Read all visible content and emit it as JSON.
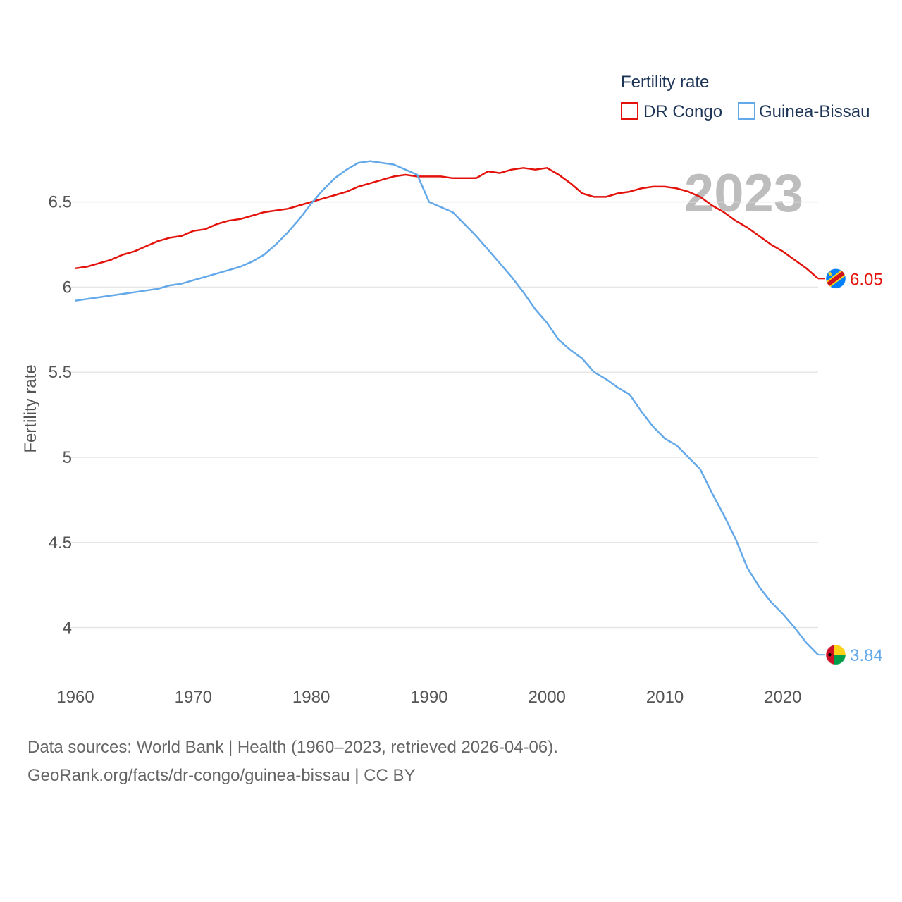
{
  "chart_data": {
    "type": "line",
    "legend_title": "Fertility rate",
    "ylabel": "Fertility rate",
    "xlabel": "",
    "year_display": "2023",
    "xlim": [
      1960,
      2023
    ],
    "ylim": [
      3.7,
      6.9
    ],
    "x_ticks": [
      1960,
      1970,
      1980,
      1990,
      2000,
      2010,
      2020
    ],
    "y_ticks": [
      4,
      4.5,
      5,
      5.5,
      6,
      6.5
    ],
    "x_tick_labels": [
      "1960",
      "1970",
      "1980",
      "1990",
      "2000",
      "2010",
      "2020"
    ],
    "y_tick_labels": [
      "4",
      "4.5",
      "5",
      "5.5",
      "6",
      "6.5"
    ],
    "x": [
      1960,
      1961,
      1962,
      1963,
      1964,
      1965,
      1966,
      1967,
      1968,
      1969,
      1970,
      1971,
      1972,
      1973,
      1974,
      1975,
      1976,
      1977,
      1978,
      1979,
      1980,
      1981,
      1982,
      1983,
      1984,
      1985,
      1986,
      1987,
      1988,
      1989,
      1990,
      1991,
      1992,
      1993,
      1994,
      1995,
      1996,
      1997,
      1998,
      1999,
      2000,
      2001,
      2002,
      2003,
      2004,
      2005,
      2006,
      2007,
      2008,
      2009,
      2010,
      2011,
      2012,
      2013,
      2014,
      2015,
      2016,
      2017,
      2018,
      2019,
      2020,
      2021,
      2022,
      2023
    ],
    "series": [
      {
        "name": "DR Congo",
        "color": "#e3120b",
        "end_label": "6.05",
        "flag": "dr-congo-flag-icon",
        "values": [
          6.11,
          6.12,
          6.14,
          6.16,
          6.19,
          6.21,
          6.24,
          6.27,
          6.29,
          6.3,
          6.33,
          6.34,
          6.37,
          6.39,
          6.4,
          6.42,
          6.44,
          6.45,
          6.46,
          6.48,
          6.5,
          6.52,
          6.54,
          6.56,
          6.59,
          6.61,
          6.63,
          6.65,
          6.66,
          6.65,
          6.65,
          6.65,
          6.64,
          6.64,
          6.64,
          6.68,
          6.67,
          6.69,
          6.7,
          6.69,
          6.7,
          6.66,
          6.61,
          6.55,
          6.53,
          6.53,
          6.55,
          6.56,
          6.58,
          6.59,
          6.59,
          6.58,
          6.56,
          6.53,
          6.48,
          6.44,
          6.39,
          6.35,
          6.3,
          6.25,
          6.21,
          6.16,
          6.11,
          6.05
        ]
      },
      {
        "name": "Guinea-Bissau",
        "color": "#63a8e9",
        "end_label": "3.84",
        "flag": "guinea-bissau-flag-icon",
        "values": [
          5.92,
          5.93,
          5.94,
          5.95,
          5.96,
          5.97,
          5.98,
          5.99,
          6.01,
          6.02,
          6.04,
          6.06,
          6.08,
          6.1,
          6.12,
          6.15,
          6.19,
          6.25,
          6.32,
          6.4,
          6.49,
          6.57,
          6.64,
          6.69,
          6.73,
          6.74,
          6.73,
          6.72,
          6.69,
          6.66,
          6.5,
          6.47,
          6.44,
          6.37,
          6.3,
          6.22,
          6.14,
          6.06,
          5.97,
          5.87,
          5.79,
          5.69,
          5.63,
          5.58,
          5.5,
          5.46,
          5.41,
          5.37,
          5.27,
          5.18,
          5.11,
          5.07,
          5.0,
          4.93,
          4.79,
          4.66,
          4.52,
          4.35,
          4.24,
          4.15,
          4.08,
          4.0,
          3.91,
          3.84
        ]
      }
    ]
  },
  "footer": {
    "line1": "Data sources: World Bank | Health (1960–2023, retrieved 2026-04-06).",
    "line2": "GeoRank.org/facts/dr-congo/guinea-bissau | CC BY"
  }
}
